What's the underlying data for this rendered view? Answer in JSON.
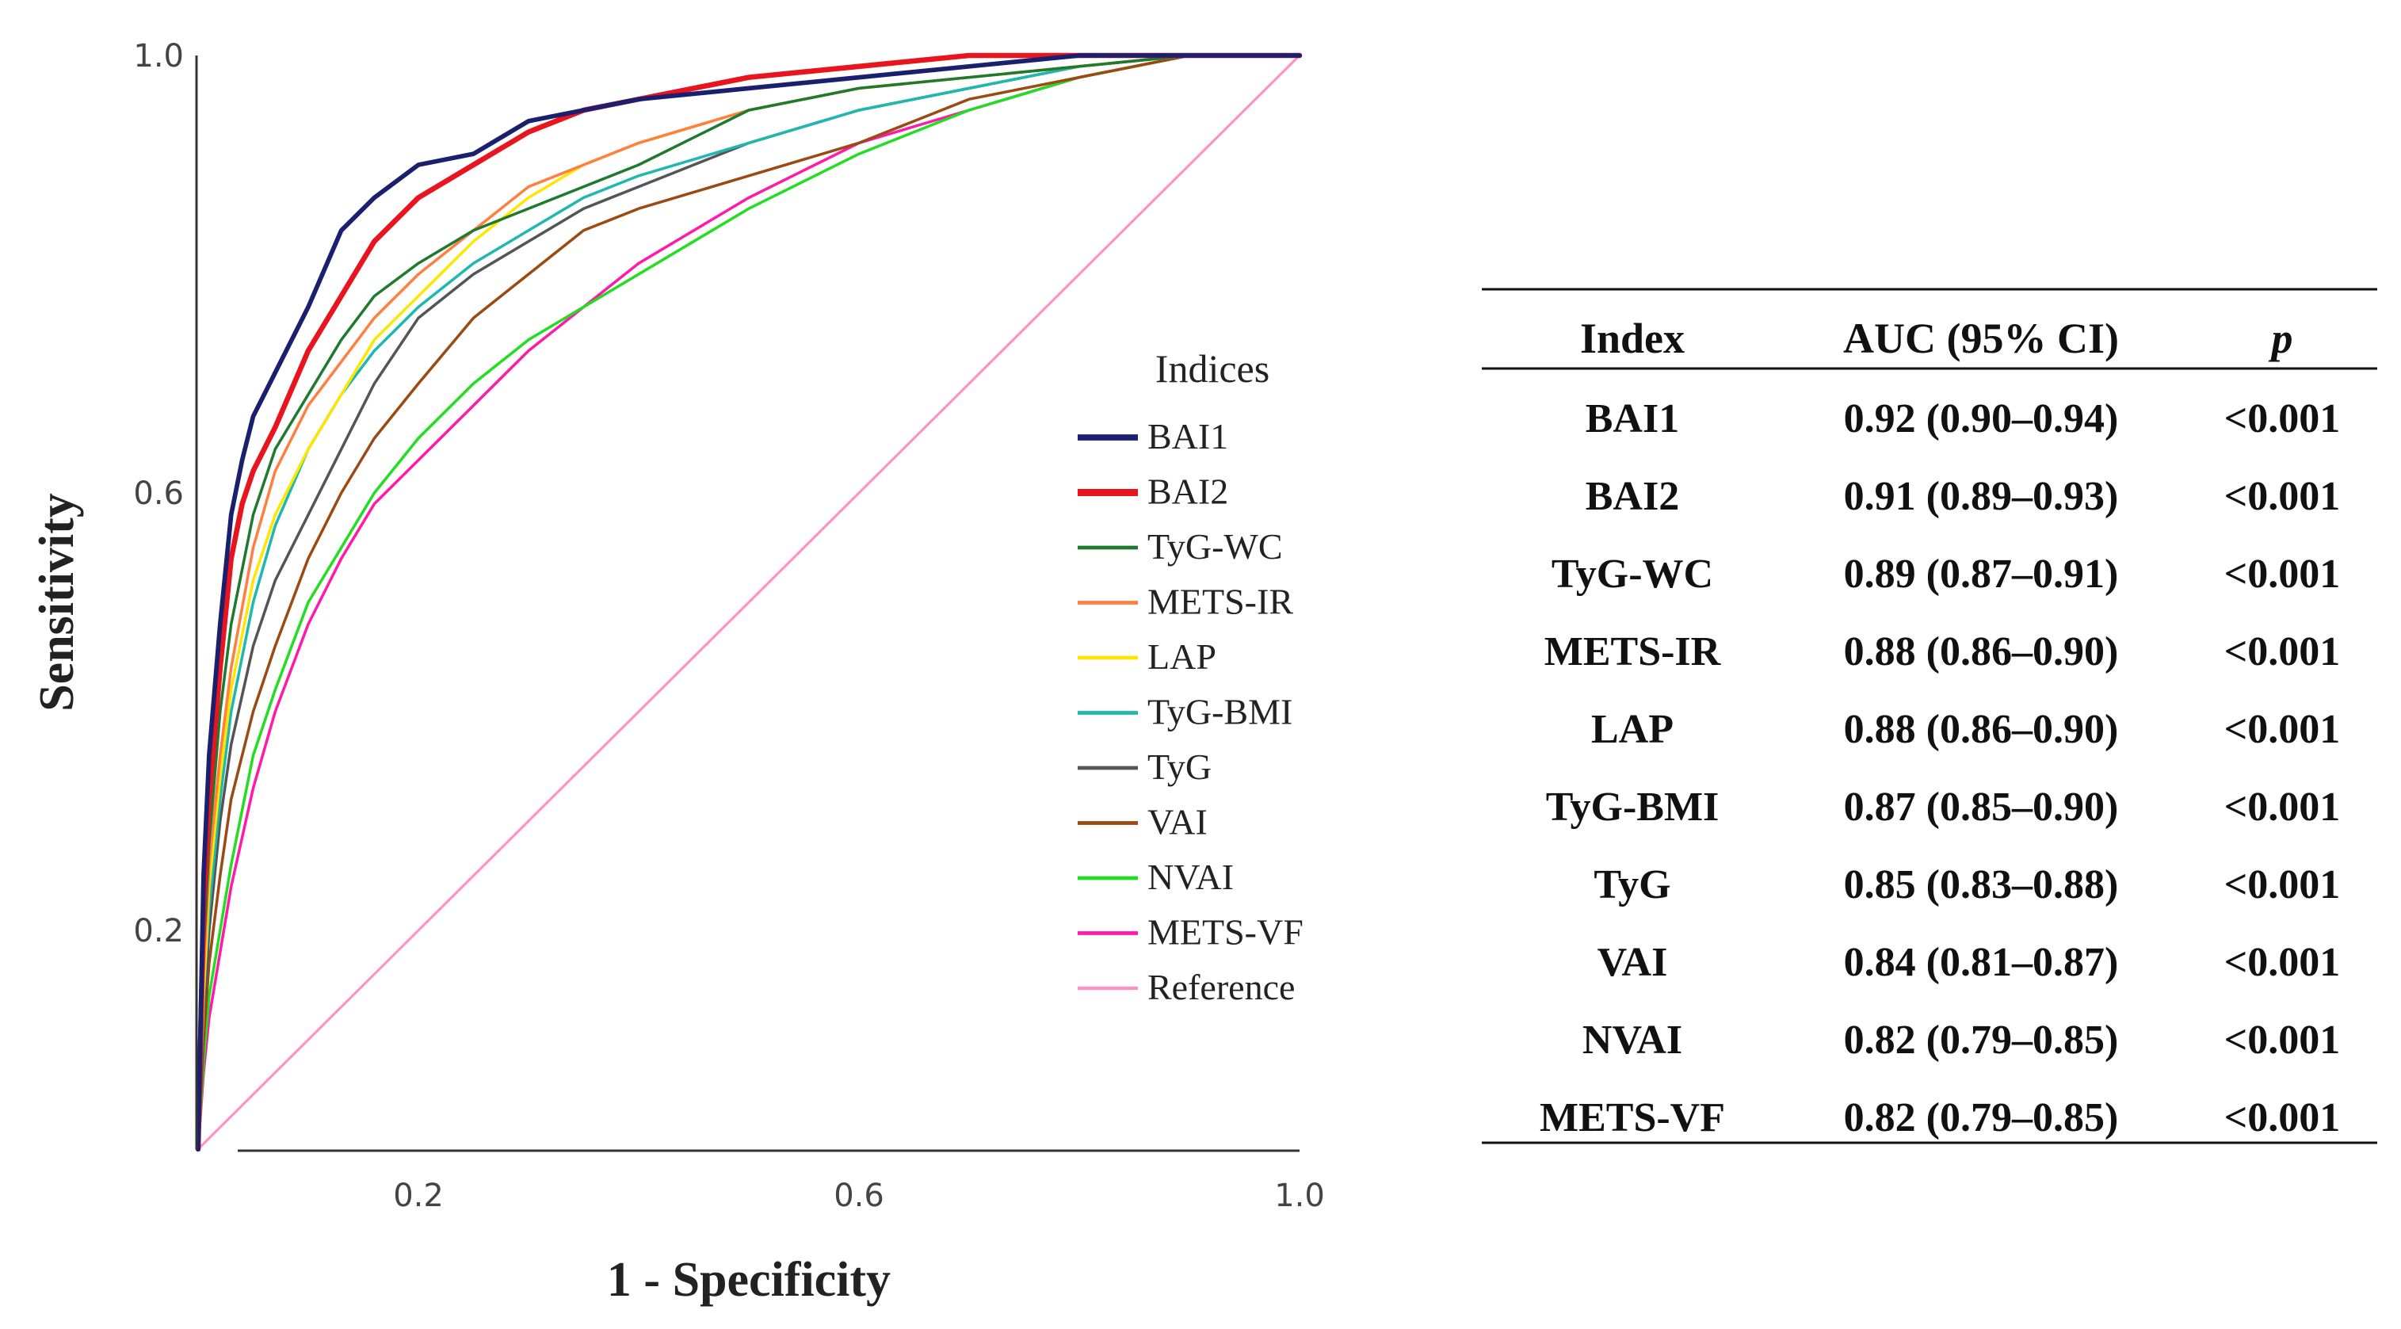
{
  "chart_data": {
    "type": "line",
    "title": "",
    "xlabel": "1 - Specificity",
    "ylabel": "Sensitivity",
    "xlim": [
      0,
      1
    ],
    "ylim": [
      0,
      1
    ],
    "x_ticks": [
      "0.2",
      "0.6",
      "1.0"
    ],
    "x_tick_values": [
      0.2,
      0.6,
      1.0
    ],
    "y_ticks": [
      "0.2",
      "0.6",
      "1.0"
    ],
    "y_tick_values": [
      0.2,
      0.6,
      1.0
    ],
    "grid": false,
    "legend_title": "Indices",
    "legend_position": "right",
    "series": [
      {
        "name": "BAI1",
        "color": "#1a1f6e",
        "width": 2.6,
        "x": [
          0,
          0.005,
          0.01,
          0.02,
          0.03,
          0.04,
          0.05,
          0.07,
          0.1,
          0.13,
          0.16,
          0.2,
          0.25,
          0.3,
          0.35,
          0.4,
          0.5,
          0.6,
          0.7,
          0.8,
          0.9,
          1.0
        ],
        "y": [
          0,
          0.25,
          0.36,
          0.48,
          0.58,
          0.63,
          0.67,
          0.71,
          0.77,
          0.84,
          0.87,
          0.9,
          0.91,
          0.94,
          0.95,
          0.96,
          0.97,
          0.98,
          0.99,
          1.0,
          1.0,
          1.0
        ]
      },
      {
        "name": "BAI2",
        "color": "#e8141e",
        "width": 3.0,
        "x": [
          0,
          0.005,
          0.01,
          0.02,
          0.03,
          0.04,
          0.05,
          0.07,
          0.1,
          0.13,
          0.16,
          0.2,
          0.25,
          0.3,
          0.35,
          0.4,
          0.5,
          0.6,
          0.7,
          0.8,
          0.9,
          1.0
        ],
        "y": [
          0,
          0.22,
          0.32,
          0.44,
          0.54,
          0.59,
          0.62,
          0.66,
          0.73,
          0.78,
          0.83,
          0.87,
          0.9,
          0.93,
          0.95,
          0.96,
          0.98,
          0.99,
          1.0,
          1.0,
          1.0,
          1.0
        ]
      },
      {
        "name": "TyG-WC",
        "color": "#1e7a2e",
        "width": 1.6,
        "x": [
          0,
          0.005,
          0.01,
          0.02,
          0.03,
          0.05,
          0.07,
          0.1,
          0.13,
          0.16,
          0.2,
          0.25,
          0.3,
          0.35,
          0.4,
          0.5,
          0.6,
          0.7,
          0.8,
          0.9,
          1.0
        ],
        "y": [
          0,
          0.18,
          0.28,
          0.4,
          0.48,
          0.58,
          0.64,
          0.69,
          0.74,
          0.78,
          0.81,
          0.84,
          0.86,
          0.88,
          0.9,
          0.95,
          0.97,
          0.98,
          0.99,
          1.0,
          1.0
        ]
      },
      {
        "name": "METS-IR",
        "color": "#ff7f40",
        "width": 1.6,
        "x": [
          0,
          0.005,
          0.01,
          0.02,
          0.03,
          0.05,
          0.07,
          0.1,
          0.13,
          0.16,
          0.2,
          0.25,
          0.3,
          0.35,
          0.4,
          0.5,
          0.6,
          0.7,
          0.8,
          0.9,
          1.0
        ],
        "y": [
          0,
          0.16,
          0.26,
          0.36,
          0.44,
          0.55,
          0.62,
          0.68,
          0.72,
          0.76,
          0.8,
          0.84,
          0.88,
          0.9,
          0.92,
          0.95,
          0.97,
          0.98,
          0.99,
          1.0,
          1.0
        ]
      },
      {
        "name": "LAP",
        "color": "#ffe600",
        "width": 1.6,
        "x": [
          0,
          0.005,
          0.01,
          0.02,
          0.03,
          0.05,
          0.07,
          0.1,
          0.13,
          0.16,
          0.2,
          0.25,
          0.3,
          0.35,
          0.4,
          0.5,
          0.6,
          0.7,
          0.8,
          0.9,
          1.0
        ],
        "y": [
          0,
          0.14,
          0.24,
          0.34,
          0.42,
          0.52,
          0.58,
          0.64,
          0.69,
          0.74,
          0.78,
          0.83,
          0.87,
          0.9,
          0.92,
          0.95,
          0.97,
          0.98,
          0.99,
          1.0,
          1.0
        ]
      },
      {
        "name": "TyG-BMI",
        "color": "#1fb8b0",
        "width": 1.6,
        "x": [
          0,
          0.005,
          0.01,
          0.02,
          0.03,
          0.05,
          0.07,
          0.1,
          0.13,
          0.16,
          0.2,
          0.25,
          0.3,
          0.35,
          0.4,
          0.5,
          0.6,
          0.7,
          0.8,
          0.9,
          1.0
        ],
        "y": [
          0,
          0.14,
          0.22,
          0.32,
          0.4,
          0.5,
          0.57,
          0.64,
          0.69,
          0.73,
          0.77,
          0.81,
          0.84,
          0.87,
          0.89,
          0.92,
          0.95,
          0.97,
          0.99,
          1.0,
          1.0
        ]
      },
      {
        "name": "TyG",
        "color": "#555555",
        "width": 1.6,
        "x": [
          0,
          0.005,
          0.01,
          0.02,
          0.03,
          0.05,
          0.07,
          0.1,
          0.13,
          0.16,
          0.2,
          0.25,
          0.3,
          0.35,
          0.4,
          0.5,
          0.6,
          0.7,
          0.8,
          0.9,
          1.0
        ],
        "y": [
          0,
          0.12,
          0.2,
          0.3,
          0.37,
          0.46,
          0.52,
          0.58,
          0.64,
          0.7,
          0.76,
          0.8,
          0.83,
          0.86,
          0.88,
          0.92,
          0.95,
          0.97,
          0.99,
          1.0,
          1.0
        ]
      },
      {
        "name": "VAI",
        "color": "#9a4a12",
        "width": 1.6,
        "x": [
          0,
          0.005,
          0.01,
          0.02,
          0.03,
          0.05,
          0.07,
          0.1,
          0.13,
          0.16,
          0.2,
          0.25,
          0.3,
          0.35,
          0.4,
          0.5,
          0.6,
          0.7,
          0.8,
          0.9,
          1.0
        ],
        "y": [
          0,
          0.1,
          0.17,
          0.25,
          0.32,
          0.4,
          0.46,
          0.54,
          0.6,
          0.65,
          0.7,
          0.76,
          0.8,
          0.84,
          0.86,
          0.89,
          0.92,
          0.96,
          0.98,
          1.0,
          1.0
        ]
      },
      {
        "name": "NVAI",
        "color": "#22dd22",
        "width": 1.6,
        "x": [
          0,
          0.005,
          0.01,
          0.02,
          0.03,
          0.05,
          0.07,
          0.1,
          0.13,
          0.16,
          0.2,
          0.25,
          0.3,
          0.35,
          0.4,
          0.5,
          0.6,
          0.7,
          0.8,
          0.9,
          1.0
        ],
        "y": [
          0,
          0.08,
          0.14,
          0.2,
          0.26,
          0.36,
          0.42,
          0.5,
          0.55,
          0.6,
          0.65,
          0.7,
          0.74,
          0.77,
          0.8,
          0.86,
          0.91,
          0.95,
          0.98,
          1.0,
          1.0
        ]
      },
      {
        "name": "METS-VF",
        "color": "#ff1aa8",
        "width": 1.6,
        "x": [
          0,
          0.005,
          0.01,
          0.02,
          0.03,
          0.05,
          0.07,
          0.1,
          0.13,
          0.16,
          0.2,
          0.25,
          0.3,
          0.35,
          0.4,
          0.5,
          0.6,
          0.7,
          0.8,
          0.9,
          1.0
        ],
        "y": [
          0,
          0.07,
          0.12,
          0.18,
          0.24,
          0.33,
          0.4,
          0.48,
          0.54,
          0.59,
          0.63,
          0.68,
          0.73,
          0.77,
          0.81,
          0.87,
          0.92,
          0.95,
          0.98,
          1.0,
          1.0
        ]
      },
      {
        "name": "Reference",
        "color": "#ff8fc4",
        "width": 1.4,
        "x": [
          0,
          1.0
        ],
        "y": [
          0,
          1.0
        ]
      }
    ]
  },
  "table": {
    "headers": [
      "Index",
      "AUC (95% CI)",
      "p"
    ],
    "rows": [
      [
        "BAI1",
        "0.92 (0.90–0.94)",
        "<0.001"
      ],
      [
        "BAI2",
        "0.91 (0.89–0.93)",
        "<0.001"
      ],
      [
        "TyG-WC",
        "0.89 (0.87–0.91)",
        "<0.001"
      ],
      [
        "METS-IR",
        "0.88 (0.86–0.90)",
        "<0.001"
      ],
      [
        "LAP",
        "0.88 (0.86–0.90)",
        "<0.001"
      ],
      [
        "TyG-BMI",
        "0.87 (0.85–0.90)",
        "<0.001"
      ],
      [
        "TyG",
        "0.85 (0.83–0.88)",
        "<0.001"
      ],
      [
        "VAI",
        "0.84 (0.81–0.87)",
        "<0.001"
      ],
      [
        "NVAI",
        "0.82 (0.79–0.85)",
        "<0.001"
      ],
      [
        "METS-VF",
        "0.82 (0.79–0.85)",
        "<0.001"
      ]
    ]
  }
}
